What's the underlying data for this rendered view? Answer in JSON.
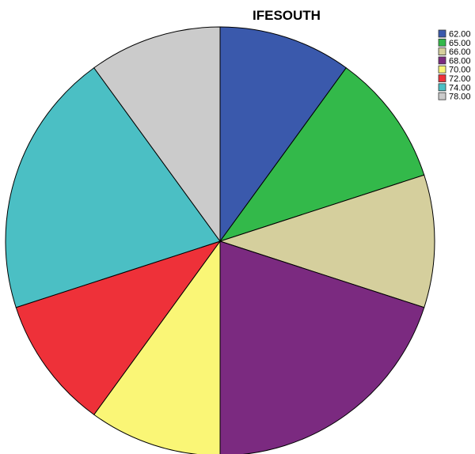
{
  "chart_data": {
    "type": "pie",
    "title": "IFESOUTH",
    "start_angle_deg": 0,
    "direction": "clockwise",
    "legend": "top-right",
    "slices": [
      {
        "label": "62.00",
        "value": 1,
        "color": "#3a59ac"
      },
      {
        "label": "65.00",
        "value": 1,
        "color": "#33b94a"
      },
      {
        "label": "66.00",
        "value": 1,
        "color": "#d5cf9d"
      },
      {
        "label": "68.00",
        "value": 2,
        "color": "#7b2a80"
      },
      {
        "label": "70.00",
        "value": 1,
        "color": "#faf676"
      },
      {
        "label": "72.00",
        "value": 1,
        "color": "#ee3139"
      },
      {
        "label": "74.00",
        "value": 2,
        "color": "#4bbfc4"
      },
      {
        "label": "78.00",
        "value": 1,
        "color": "#cbcbcb"
      }
    ]
  }
}
